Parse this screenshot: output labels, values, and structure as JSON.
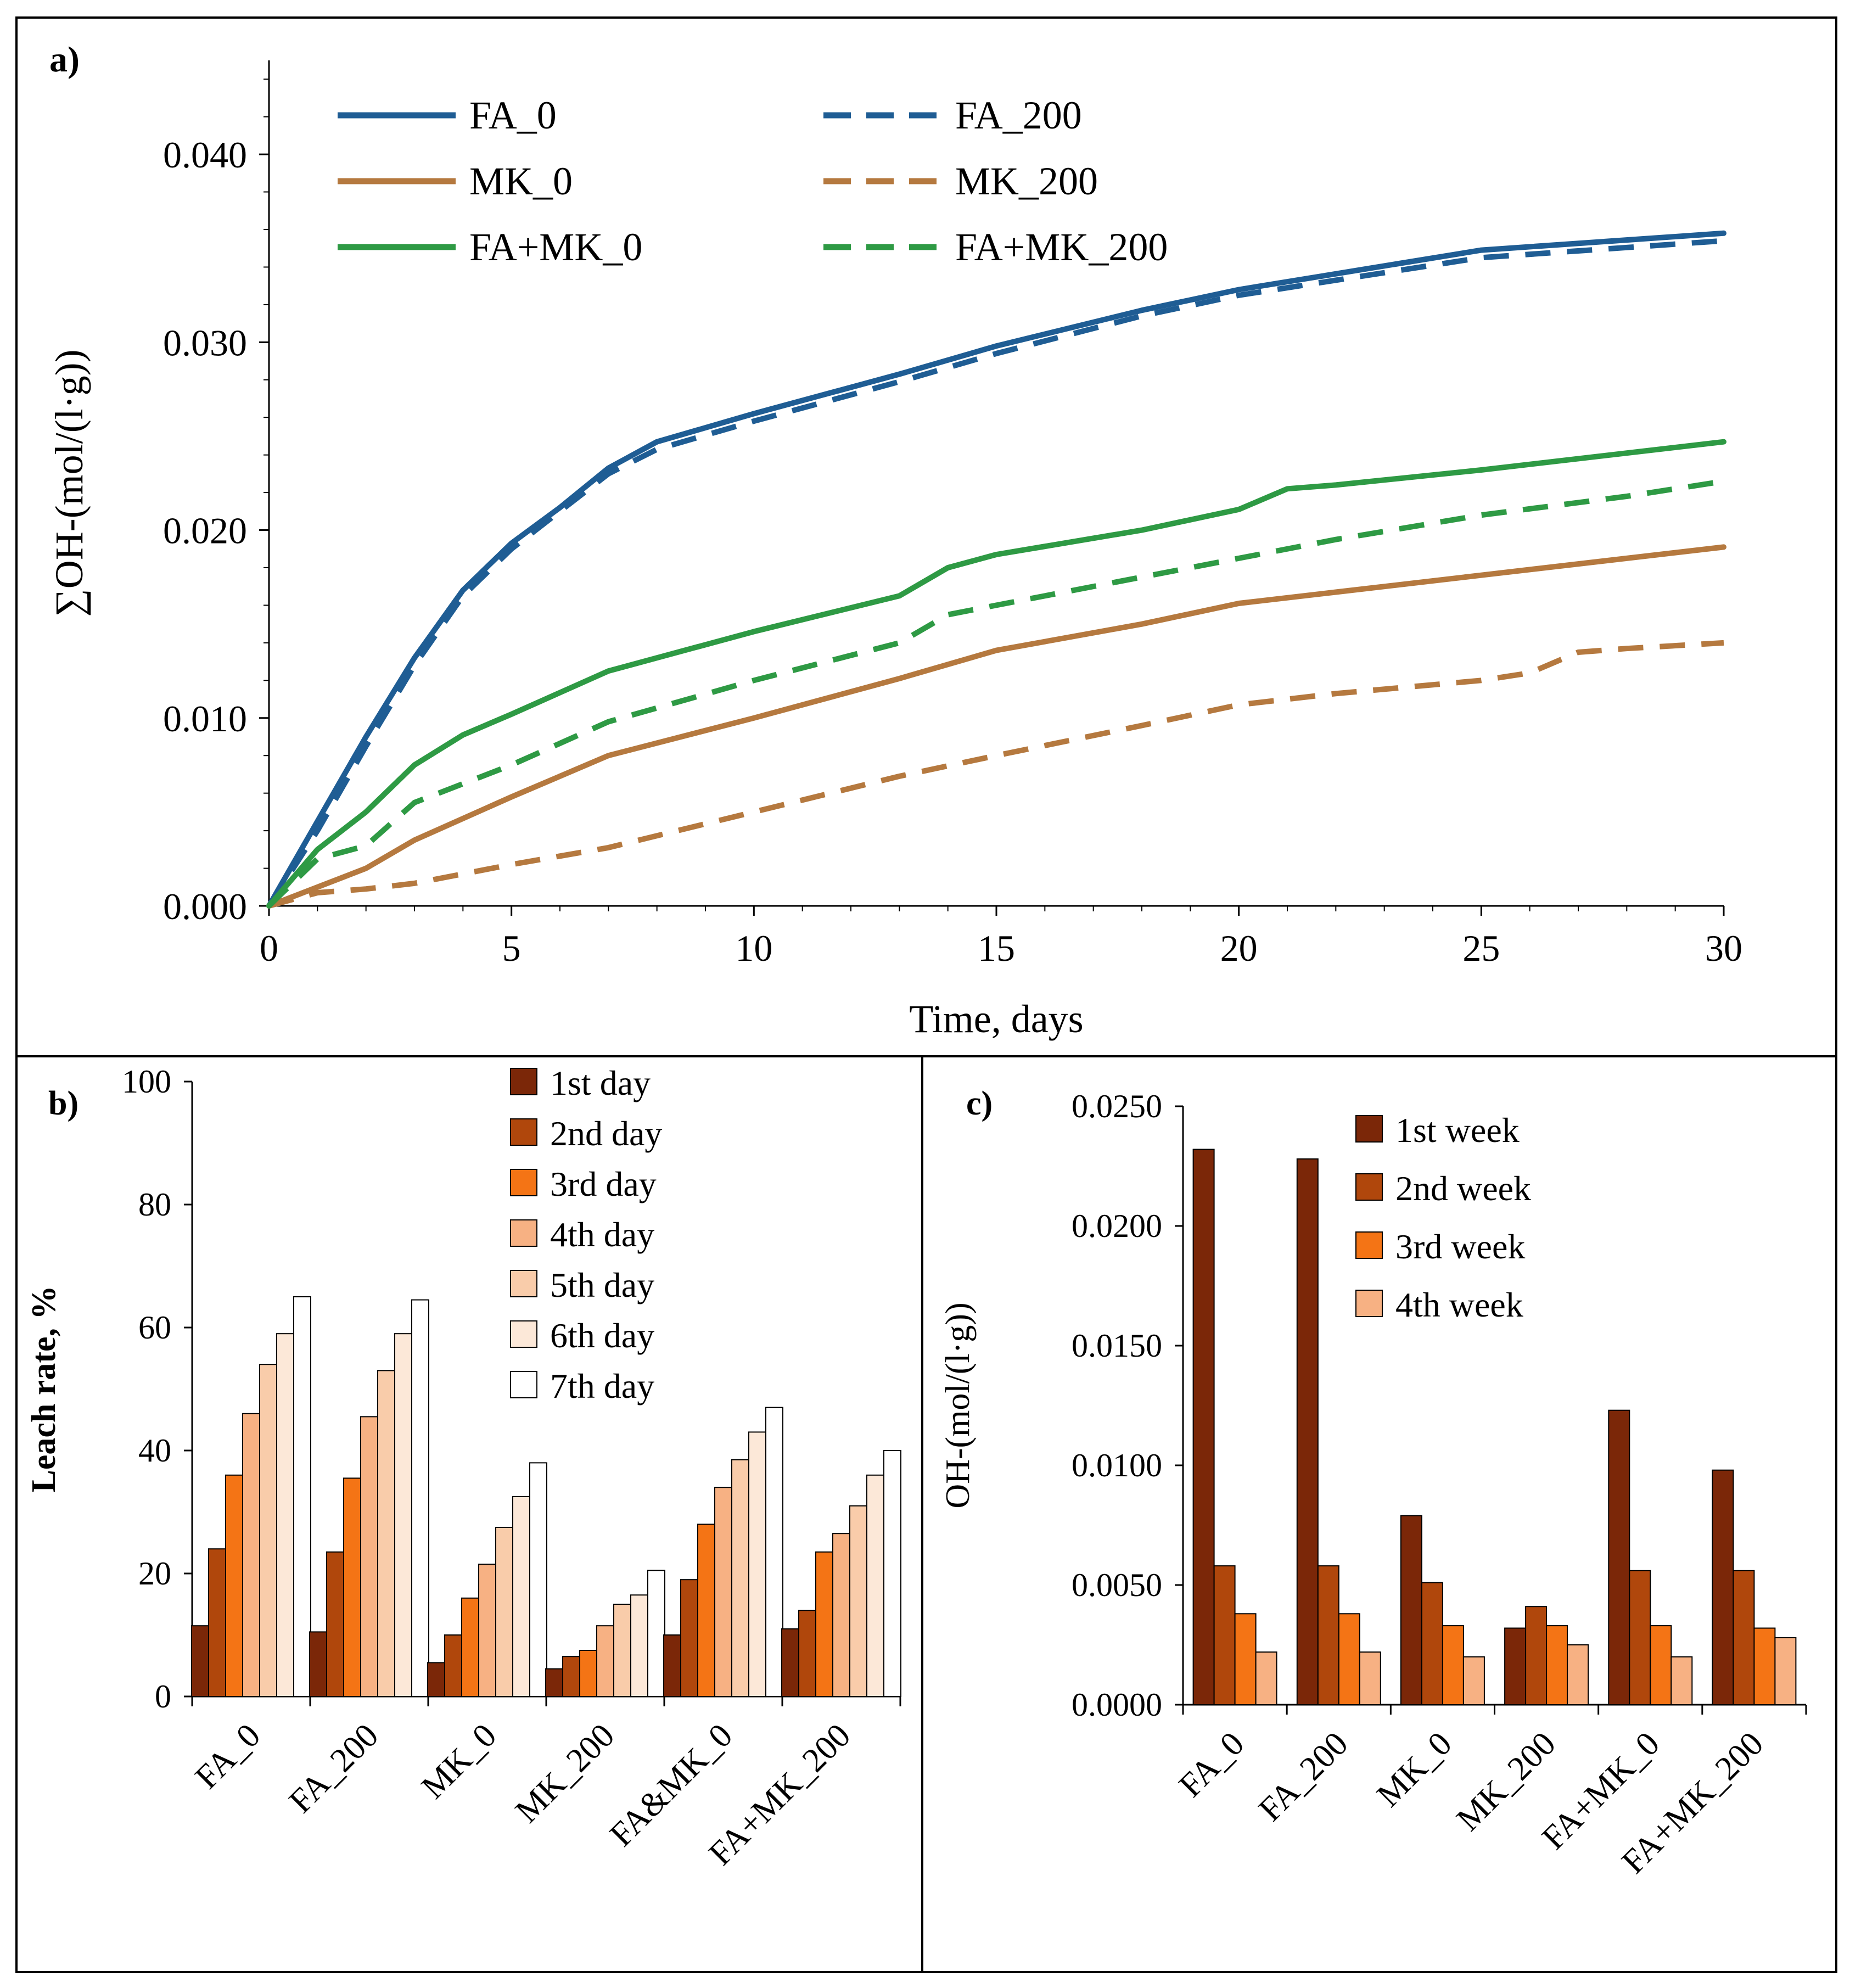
{
  "chart_data": [
    {
      "panel_label": "a)",
      "type": "line",
      "title": "",
      "xlabel": "Time, days",
      "ylabel": "∑OH-(mol/(l·g))",
      "xlim": [
        0,
        30
      ],
      "ylim": [
        0,
        0.045
      ],
      "x_ticks": [
        "0",
        "5",
        "10",
        "15",
        "20",
        "25",
        "30"
      ],
      "y_ticks": [
        "0.000",
        "0.010",
        "0.020",
        "0.030",
        "0.040"
      ],
      "legend_position": "top-left",
      "series": [
        {
          "name": "FA_0",
          "color": "#1F5D94",
          "dash": "solid",
          "x": [
            0,
            1,
            2,
            3,
            4,
            5,
            6,
            7,
            8,
            10,
            13,
            15,
            18,
            20,
            25,
            30
          ],
          "y": [
            0,
            0.0045,
            0.009,
            0.0132,
            0.0168,
            0.0193,
            0.0212,
            0.0233,
            0.0247,
            0.0262,
            0.0283,
            0.0298,
            0.0317,
            0.0328,
            0.0349,
            0.0358
          ]
        },
        {
          "name": "FA_200",
          "color": "#1F5D94",
          "dash": "dashed",
          "x": [
            0,
            1,
            2,
            3,
            4,
            5,
            6,
            7,
            8,
            10,
            13,
            15,
            18,
            20,
            25,
            30
          ],
          "y": [
            0,
            0.004,
            0.0085,
            0.0128,
            0.0165,
            0.019,
            0.021,
            0.023,
            0.0243,
            0.0258,
            0.0279,
            0.0294,
            0.0314,
            0.0325,
            0.0345,
            0.0354
          ]
        },
        {
          "name": "MK_0",
          "color": "#B5793F",
          "dash": "solid",
          "x": [
            0,
            1,
            2,
            3,
            5,
            7,
            10,
            13,
            15,
            18,
            20,
            22,
            25,
            30
          ],
          "y": [
            0,
            0.001,
            0.002,
            0.0035,
            0.0058,
            0.008,
            0.01,
            0.0121,
            0.0136,
            0.015,
            0.0161,
            0.0167,
            0.0176,
            0.0191
          ]
        },
        {
          "name": "MK_200",
          "color": "#B5793F",
          "dash": "dashed",
          "x": [
            0,
            1,
            2,
            3,
            5,
            7,
            10,
            13,
            15,
            18,
            20,
            22,
            25,
            26,
            27,
            28,
            30
          ],
          "y": [
            0,
            0.0007,
            0.0009,
            0.0012,
            0.0022,
            0.0031,
            0.005,
            0.0069,
            0.008,
            0.0096,
            0.0107,
            0.0113,
            0.012,
            0.0124,
            0.0135,
            0.0137,
            0.014
          ]
        },
        {
          "name": "FA+MK_0",
          "color": "#2E9A44",
          "dash": "solid",
          "x": [
            0,
            1,
            2,
            3,
            4,
            5,
            7,
            10,
            13,
            14,
            15,
            18,
            20,
            21,
            22,
            25,
            30
          ],
          "y": [
            0,
            0.003,
            0.005,
            0.0075,
            0.0091,
            0.0102,
            0.0125,
            0.0146,
            0.0165,
            0.018,
            0.0187,
            0.02,
            0.0211,
            0.0222,
            0.0224,
            0.0232,
            0.0247
          ]
        },
        {
          "name": "FA+MK_200",
          "color": "#2E9A44",
          "dash": "dashed",
          "x": [
            0,
            1,
            2,
            3,
            5,
            7,
            10,
            13,
            14,
            15,
            18,
            20,
            22,
            25,
            28,
            30
          ],
          "y": [
            0,
            0.0025,
            0.0032,
            0.0055,
            0.0075,
            0.0098,
            0.012,
            0.014,
            0.0155,
            0.016,
            0.0175,
            0.0185,
            0.0195,
            0.0208,
            0.0218,
            0.0226
          ]
        }
      ]
    },
    {
      "panel_label": "b)",
      "type": "bar",
      "title": "",
      "xlabel": "",
      "ylabel": "Leach rate, %",
      "ylim": [
        0,
        100
      ],
      "y_ticks": [
        "0",
        "20",
        "40",
        "60",
        "80",
        "100"
      ],
      "categories": [
        "FA_0",
        "FA_200",
        "MK_0",
        "MK_200",
        "FA&MK_0",
        "FA+MK_200"
      ],
      "legend_position": "top-center",
      "series": [
        {
          "name": "1st day",
          "color": "#7B2708",
          "values": [
            11.5,
            10.5,
            5.5,
            4.5,
            10.0,
            11.0
          ]
        },
        {
          "name": "2nd day",
          "color": "#B0470C",
          "values": [
            24.0,
            23.5,
            10.0,
            6.5,
            19.0,
            14.0
          ]
        },
        {
          "name": "3rd day",
          "color": "#F47415",
          "values": [
            36.0,
            35.5,
            16.0,
            7.5,
            28.0,
            23.5
          ]
        },
        {
          "name": "4th day",
          "color": "#F7B183",
          "values": [
            46.0,
            45.5,
            21.5,
            11.5,
            34.0,
            26.5
          ]
        },
        {
          "name": "5th day",
          "color": "#F9CCAA",
          "values": [
            54.0,
            53.0,
            27.5,
            15.0,
            38.5,
            31.0
          ]
        },
        {
          "name": "6th day",
          "color": "#FCE8D8",
          "values": [
            59.0,
            59.0,
            32.5,
            16.5,
            43.0,
            36.0
          ]
        },
        {
          "name": "7th day",
          "color": "#FFFFFF",
          "values": [
            65.0,
            64.5,
            38.0,
            20.5,
            47.0,
            40.0
          ]
        }
      ]
    },
    {
      "panel_label": "c)",
      "type": "bar",
      "title": "",
      "xlabel": "",
      "ylabel": "OH-(mol/(l·g))",
      "ylim": [
        0,
        0.025
      ],
      "y_ticks": [
        "0.0000",
        "0.0050",
        "0.0100",
        "0.0150",
        "0.0200",
        "0.0250"
      ],
      "categories": [
        "FA_0",
        "FA_200",
        "MK_0",
        "MK_200",
        "FA+MK_0",
        "FA+MK_200"
      ],
      "legend_position": "top-center",
      "series": [
        {
          "name": "1st week",
          "color": "#7B2708",
          "values": [
            0.0232,
            0.0228,
            0.0079,
            0.0032,
            0.0123,
            0.0098
          ]
        },
        {
          "name": "2nd week",
          "color": "#B0470C",
          "values": [
            0.0058,
            0.0058,
            0.0051,
            0.0041,
            0.0056,
            0.0056
          ]
        },
        {
          "name": "3rd week",
          "color": "#F47415",
          "values": [
            0.0038,
            0.0038,
            0.0033,
            0.0033,
            0.0033,
            0.0032
          ]
        },
        {
          "name": "4th week",
          "color": "#F7B183",
          "values": [
            0.0022,
            0.0022,
            0.002,
            0.0025,
            0.002,
            0.0028
          ]
        }
      ]
    }
  ]
}
